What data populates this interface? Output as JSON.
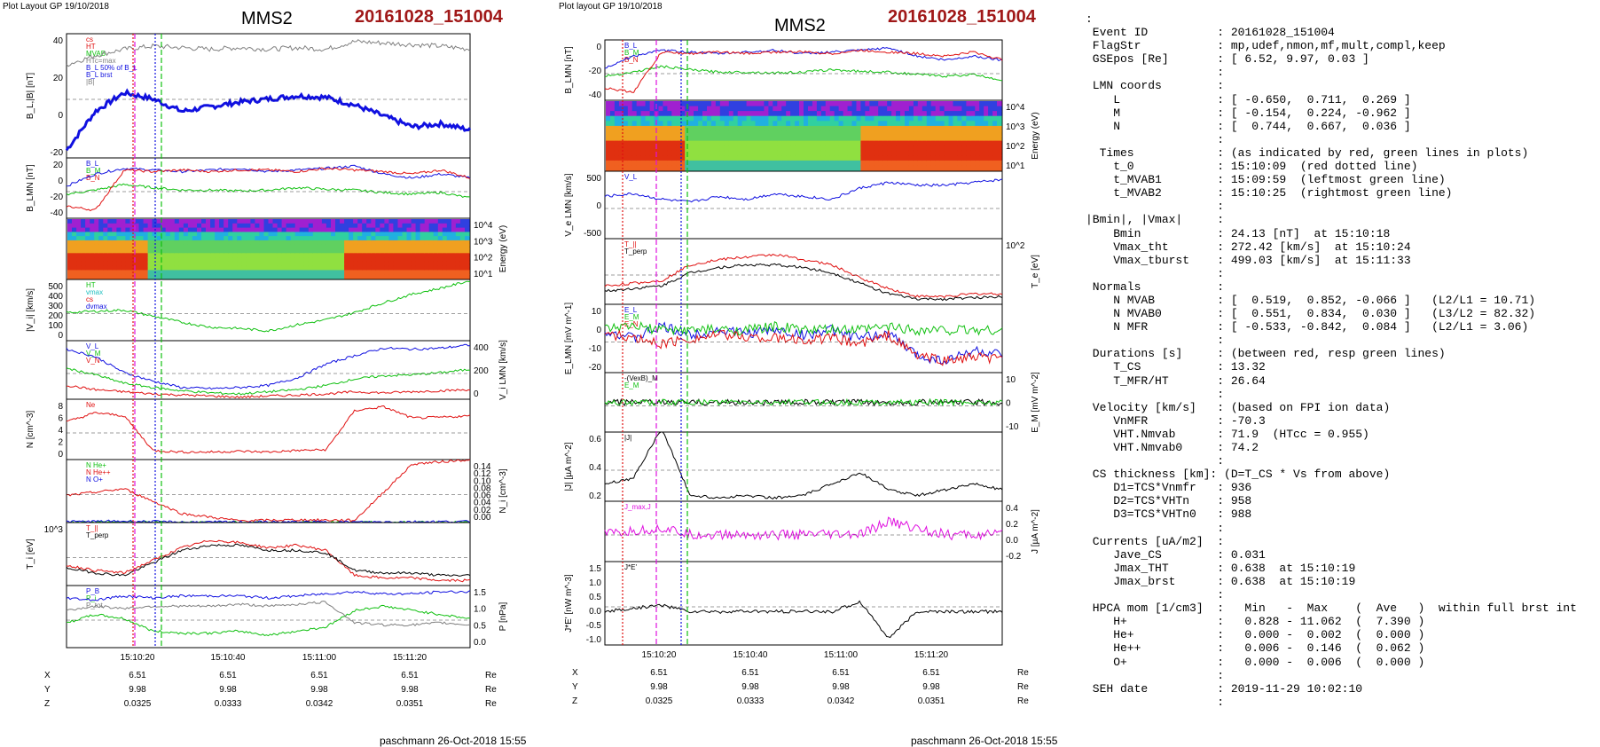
{
  "title_left": "Plot Layout GP 19/10/2018",
  "title_mid": "Plot layout GP 19/10/2018",
  "spacecraft": "MMS2",
  "event": "20161028_151004",
  "credit": "paschmann 26-Oct-2018 15:55",
  "time_ticks": [
    "15:10:20",
    "15:10:40",
    "15:11:00",
    "15:11:20"
  ],
  "coords": {
    "labels": [
      "X",
      "Y",
      "Z"
    ],
    "unit": "Re",
    "X": [
      "6.51",
      "6.51",
      "6.51",
      "6.51"
    ],
    "Y": [
      "9.98",
      "9.98",
      "9.98",
      "9.98"
    ],
    "Z": [
      "0.0325",
      "0.0333",
      "0.0342",
      "0.0351"
    ]
  },
  "colors": {
    "red": "#e01010",
    "green": "#10c010",
    "blue": "#1010e0",
    "magenta": "#e010e0",
    "black": "#000000",
    "gray": "#808080",
    "title_red": "#a01818"
  },
  "left_panels": [
    {
      "ylabel": "B_L,|B| [nT]",
      "ticks_left": [
        "40",
        "20",
        "0",
        "-20"
      ],
      "ticks_right": [],
      "legend": [
        "cs",
        "HT",
        "MVAB",
        "HTc=max",
        "B_L 50% of B_L",
        "B_L brst",
        "|B|"
      ],
      "legend_colors": [
        "#e01010",
        "#e01010",
        "#10c010",
        "#808080",
        "#1010e0",
        "#1010e0",
        "#808080"
      ]
    },
    {
      "ylabel": "B_LMN [nT]",
      "ticks_left": [
        "20",
        "0",
        "-20",
        "-40"
      ],
      "ticks_right": [],
      "legend": [
        "B_L",
        "B_M",
        "B_N"
      ],
      "legend_colors": [
        "#1010e0",
        "#10c010",
        "#e01010"
      ]
    },
    {
      "ylabel": "Energy (eV)",
      "ticks_left": [],
      "ticks_right": [
        "10^4",
        "10^3",
        "10^2",
        "10^1"
      ],
      "legend": [],
      "legend_colors": []
    },
    {
      "ylabel": "|V_i| [km/s]",
      "ticks_left": [
        "500",
        "400",
        "300",
        "200",
        "100",
        "0"
      ],
      "ticks_right": [],
      "legend": [
        "HT",
        "vmax",
        "cs",
        "dvmax"
      ],
      "legend_colors": [
        "#10c010",
        "#20c0c0",
        "#e01010",
        "#1010e0"
      ]
    },
    {
      "ylabel": "V_i LMN [km/s]",
      "ticks_left": [],
      "ticks_right": [
        "400",
        "200",
        "0"
      ],
      "legend": [
        "V_L",
        "V_M",
        "V_N"
      ],
      "legend_colors": [
        "#1010e0",
        "#10c010",
        "#e01010"
      ]
    },
    {
      "ylabel": "N [cm^-3]",
      "ticks_left": [
        "8",
        "6",
        "4",
        "2",
        "0"
      ],
      "ticks_right": [],
      "legend": [
        "Ne"
      ],
      "legend_colors": [
        "#e01010"
      ]
    },
    {
      "ylabel": "N_i [cm^-3]",
      "ticks_left": [],
      "ticks_right": [
        "0.14",
        "0.12",
        "0.10",
        "0.08",
        "0.06",
        "0.04",
        "0.02",
        "0.00"
      ],
      "legend": [
        "N He+",
        "N He++",
        "N O+"
      ],
      "legend_colors": [
        "#10c010",
        "#e01010",
        "#1010e0"
      ]
    },
    {
      "ylabel": "T_i [eV]",
      "ticks_left": [
        "10^3"
      ],
      "ticks_right": [],
      "legend": [
        "T_||",
        "T_perp"
      ],
      "legend_colors": [
        "#e01010",
        "#000000"
      ]
    },
    {
      "ylabel": "P [nPa]",
      "ticks_left": [],
      "ticks_right": [
        "1.5",
        "1.0",
        "0.5",
        "0.0"
      ],
      "legend": [
        "P_B",
        "P_i",
        "P_tot"
      ],
      "legend_colors": [
        "#1010e0",
        "#10c010",
        "#808080"
      ]
    }
  ],
  "mid_panels": [
    {
      "ylabel": "B_LMN [nT]",
      "ticks_left": [
        "0",
        "-20",
        "-40"
      ],
      "ticks_right": [],
      "legend": [
        "B_L",
        "B_M",
        "B_N"
      ],
      "legend_colors": [
        "#1010e0",
        "#10c010",
        "#e01010"
      ]
    },
    {
      "ylabel": "Energy (eV)",
      "ticks_left": [],
      "ticks_right": [
        "10^4",
        "10^3",
        "10^2",
        "10^1"
      ],
      "legend": [],
      "legend_colors": []
    },
    {
      "ylabel": "V_e LMN [km/s]",
      "ticks_left": [
        "500",
        "0",
        "-500"
      ],
      "ticks_right": [],
      "legend": [
        "V_L"
      ],
      "legend_colors": [
        "#1010e0"
      ]
    },
    {
      "ylabel": "T_e [eV]",
      "ticks_left": [],
      "ticks_right": [
        "10^2"
      ],
      "legend": [
        "T_||",
        "T_perp"
      ],
      "legend_colors": [
        "#e01010",
        "#000000"
      ]
    },
    {
      "ylabel": "E_LMN [mV m^-1]",
      "ticks_left": [
        "10",
        "0",
        "-10",
        "-20"
      ],
      "ticks_right": [],
      "legend": [
        "E_L",
        "E_M",
        "E_N"
      ],
      "legend_colors": [
        "#1010e0",
        "#10c010",
        "#e01010"
      ]
    },
    {
      "ylabel": "E_M [mV m^-2]",
      "ticks_left": [],
      "ticks_right": [
        "10",
        "0",
        "-10"
      ],
      "legend": [
        "-(VexB)_M",
        "E_M"
      ],
      "legend_colors": [
        "#000000",
        "#10c010"
      ]
    },
    {
      "ylabel": "|J| [µA m^-2]",
      "ticks_left": [
        "0.6",
        "0.4",
        "0.2"
      ],
      "ticks_right": [],
      "legend": [
        "|J|"
      ],
      "legend_colors": [
        "#000000"
      ]
    },
    {
      "ylabel": "J [µA m^-2]",
      "ticks_left": [],
      "ticks_right": [
        "0.4",
        "0.2",
        "0.0",
        "-0.2"
      ],
      "legend": [
        "J_max,J"
      ],
      "legend_colors": [
        "#e010e0"
      ]
    },
    {
      "ylabel": "J*E' [nW m^-3]",
      "ticks_left": [
        "1.5",
        "1.0",
        "0.5",
        "0.0",
        "-0.5",
        "-1.0"
      ],
      "ticks_right": [],
      "legend": [
        "J*E'"
      ],
      "legend_colors": [
        "#000000"
      ]
    }
  ],
  "chart_data": [
    {
      "type": "line",
      "title": "B_L,|B| [nT]",
      "xlabel": "",
      "ylim": [
        -30,
        50
      ],
      "x_ticks": [
        "15:10:20",
        "15:10:40",
        "15:11:00",
        "15:11:20"
      ],
      "series": [
        {
          "name": "B_L brst",
          "values": [
            -25,
            0,
            12,
            8,
            0,
            3,
            6,
            8,
            10,
            9,
            4,
            -3,
            -10,
            -8,
            -12
          ]
        },
        {
          "name": "|B|",
          "values": [
            30,
            36,
            40,
            42,
            41,
            40,
            41,
            40,
            41,
            40,
            45,
            44,
            43,
            42,
            40
          ]
        }
      ]
    },
    {
      "type": "line",
      "title": "B_LMN [nT]",
      "ylim": [
        -50,
        25
      ],
      "series": [
        {
          "name": "B_L",
          "values": [
            -10,
            5,
            12,
            10,
            8,
            10,
            12,
            8,
            10,
            12,
            15,
            5,
            0,
            5,
            0
          ]
        },
        {
          "name": "B_M",
          "values": [
            -20,
            -15,
            -8,
            -12,
            -15,
            -15,
            -16,
            -15,
            -12,
            -14,
            -15,
            -18,
            -20,
            -18,
            -25
          ]
        },
        {
          "name": "B_N",
          "values": [
            -35,
            -40,
            10,
            8,
            10,
            8,
            10,
            10,
            8,
            12,
            10,
            8,
            5,
            10,
            0
          ]
        }
      ]
    },
    {
      "type": "heatmap",
      "title": "Energy (eV)",
      "ylim": [
        10,
        20000
      ]
    },
    {
      "type": "line",
      "title": "|V_i| [km/s]",
      "ylim": [
        0,
        500
      ],
      "series": [
        {
          "name": "|V_i|",
          "values": [
            230,
            240,
            250,
            200,
            150,
            110,
            100,
            80,
            130,
            170,
            230,
            310,
            380,
            430,
            490
          ]
        }
      ]
    },
    {
      "type": "line",
      "title": "V_i LMN [km/s]",
      "ylim": [
        -50,
        500
      ],
      "series": [
        {
          "name": "V_L",
          "values": [
            420,
            350,
            200,
            120,
            60,
            50,
            60,
            80,
            150,
            280,
            360,
            430,
            420,
            430,
            460
          ]
        },
        {
          "name": "V_M",
          "values": [
            240,
            180,
            100,
            60,
            30,
            10,
            0,
            20,
            40,
            80,
            140,
            170,
            180,
            200,
            230
          ]
        },
        {
          "name": "V_N",
          "values": [
            80,
            40,
            20,
            0,
            -10,
            -20,
            -30,
            -20,
            -10,
            0,
            20,
            10,
            20,
            30,
            40
          ]
        }
      ]
    },
    {
      "type": "line",
      "title": "N [cm^-3]",
      "ylim": [
        0,
        8
      ],
      "series": [
        {
          "name": "Ne",
          "values": [
            5,
            6.2,
            5.8,
            1.2,
            1.0,
            1.0,
            1.1,
            1.0,
            1.2,
            1.3,
            6.5,
            7.0,
            5.5,
            5.6,
            5.8
          ]
        }
      ]
    },
    {
      "type": "line",
      "title": "N_i [cm^-3]",
      "ylim": [
        0,
        0.14
      ],
      "series": [
        {
          "name": "N He+",
          "values": [
            0.001,
            0.001,
            0.0005,
            0.0004,
            0.0003,
            0.0004,
            0.0003,
            0.0002
          ]
        },
        {
          "name": "N He++",
          "values": [
            0.06,
            0.075,
            0.02,
            0.004,
            0.006,
            0.005,
            0.13,
            0.14
          ]
        },
        {
          "name": "N O+",
          "values": [
            0.002,
            0.003,
            0.001,
            0.001,
            0.001,
            0.001,
            0.002,
            0.002
          ]
        }
      ]
    },
    {
      "type": "line",
      "title": "T_i [eV]",
      "ylim": [
        500,
        3000
      ],
      "series": [
        {
          "name": "T_||",
          "values": [
            1300,
            1100,
            1000,
            1500,
            2000,
            2300,
            2200,
            2000,
            2100,
            1900,
            900,
            800,
            800,
            700,
            700
          ]
        },
        {
          "name": "T_perp",
          "values": [
            1200,
            1000,
            900,
            1400,
            1900,
            2100,
            2100,
            1900,
            1900,
            1800,
            1100,
            1000,
            1000,
            900,
            900
          ]
        }
      ]
    },
    {
      "type": "line",
      "title": "P [nPa]",
      "ylim": [
        0,
        1.5
      ],
      "series": [
        {
          "name": "P_B",
          "values": [
            1.2,
            1.15,
            1.25,
            1.2,
            1.25,
            1.25,
            1.25,
            1.2,
            1.25,
            1.3,
            1.35,
            1.3,
            1.3,
            1.35,
            1.35
          ]
        },
        {
          "name": "P_i",
          "values": [
            0.6,
            0.8,
            0.7,
            0.4,
            0.35,
            0.35,
            0.4,
            0.3,
            0.4,
            0.5,
            0.9,
            1.0,
            0.9,
            0.8,
            0.7
          ]
        },
        {
          "name": "P_tot",
          "values": [
            0.9,
            1.0,
            0.95,
            1.0,
            1.0,
            1.0,
            1.05,
            1.0,
            1.05,
            1.1,
            0.6,
            0.55,
            0.55,
            0.6,
            0.55
          ]
        }
      ]
    },
    {
      "type": "line",
      "title": "V_e LMN [km/s]",
      "ylim": [
        -600,
        600
      ],
      "series": [
        {
          "name": "V_L",
          "values": [
            150,
            200,
            100,
            50,
            150,
            100,
            200,
            150,
            100,
            300,
            400,
            350,
            350,
            400,
            450
          ]
        }
      ]
    },
    {
      "type": "line",
      "title": "T_e [eV]",
      "ylim": [
        50,
        300
      ],
      "series": [
        {
          "name": "T_||",
          "values": [
            120,
            130,
            140,
            200,
            220,
            230,
            240,
            220,
            200,
            150,
            110,
            80,
            80,
            90,
            90
          ]
        },
        {
          "name": "T_perp",
          "values": [
            100,
            110,
            120,
            170,
            190,
            200,
            200,
            190,
            170,
            130,
            90,
            70,
            70,
            75,
            80
          ]
        }
      ]
    },
    {
      "type": "line",
      "title": "|J| [µA m^-2]",
      "ylim": [
        0,
        0.6
      ],
      "series": [
        {
          "name": "|J|",
          "values": [
            0.15,
            0.2,
            0.638,
            0.05,
            0.03,
            0.05,
            0.03,
            0.05,
            0.15,
            0.25,
            0.1,
            0.05,
            0.1,
            0.15,
            0.1
          ]
        }
      ]
    },
    {
      "type": "line",
      "title": "J*E' [nW m^-3]",
      "ylim": [
        -1.0,
        1.5
      ],
      "series": [
        {
          "name": "J*E'",
          "values": [
            0.0,
            0.1,
            0.2,
            0.0,
            0.0,
            0.0,
            0.0,
            0.0,
            0.0,
            0.3,
            -0.8,
            0.0,
            0.0,
            0.0,
            0.0
          ]
        }
      ]
    }
  ],
  "side_text": [
    ":",
    " Event ID          : 20161028_151004",
    " FlagStr           : mp,udef,nmon,mf,mult,compl,keep",
    " GSEpos [Re]       : [ 6.52, 9.97, 0.03 ]",
    "                   :",
    " LMN coords        :",
    "    L              : [ -0.650,  0.711,  0.269 ]",
    "    M              : [ -0.154,  0.224, -0.962 ]",
    "    N              : [  0.744,  0.667,  0.036 ]",
    "                   :",
    "  Times            : (as indicated by red, green lines in plots)",
    "    t_0            : 15:10:09  (red dotted line)",
    "    t_MVAB1        : 15:09:59  (leftmost green line)",
    "    t_MVAB2        : 15:10:25  (rightmost green line)",
    "                   :",
    "|Bmin|, |Vmax|     :",
    "    Bmin           : 24.13 [nT]  at 15:10:18",
    "    Vmax_tht       : 272.42 [km/s]  at 15:10:24",
    "    Vmax_tburst    : 499.03 [km/s]  at 15:11:33",
    "                   :",
    " Normals           :",
    "    N MVAB         : [  0.519,  0.852, -0.066 ]   (L2/L1 = 10.71)",
    "    N MVAB0        : [  0.551,  0.834,  0.030 ]   (L3/L2 = 82.32)",
    "    N MFR          : [ -0.533, -0.842,  0.084 ]   (L2/L1 = 3.06)",
    "                   :",
    " Durations [s]     : (between red, resp green lines)",
    "    T_CS           : 13.32",
    "    T_MFR/HT       : 26.64",
    "                   :",
    " Velocity [km/s]   : (based on FPI ion data)",
    "    VnMFR          : -70.3",
    "    VHT.Nmvab      : 71.9  (HTcc = 0.955)",
    "    VHT.Nmvab0     : 74.2",
    "                   :",
    " CS thickness [km]: (D=T_CS * Vs from above)",
    "    D1=TCS*Vnmfr   : 936",
    "    D2=TCS*VHTn    : 958",
    "    D3=TCS*VHTn0   : 988",
    "                   :",
    " Currents [uA/m2]  :",
    "    Jave_CS        : 0.031",
    "    Jmax_THT       : 0.638  at 15:10:19",
    "    Jmax_brst      : 0.638  at 15:10:19",
    "                   :",
    " HPCA mom [1/cm3]  :   Min   -  Max    (  Ave   )  within full brst int",
    "    H+             :   0.828 - 11.062  (  7.390 )",
    "    He+            :   0.000 -  0.002  (  0.000 )",
    "    He++           :   0.006 -  0.146  (  0.062 )",
    "    O+             :   0.000 -  0.006  (  0.000 )",
    "                   :",
    " SEH date          : 2019-11-29 10:02:10",
    "                   :"
  ]
}
